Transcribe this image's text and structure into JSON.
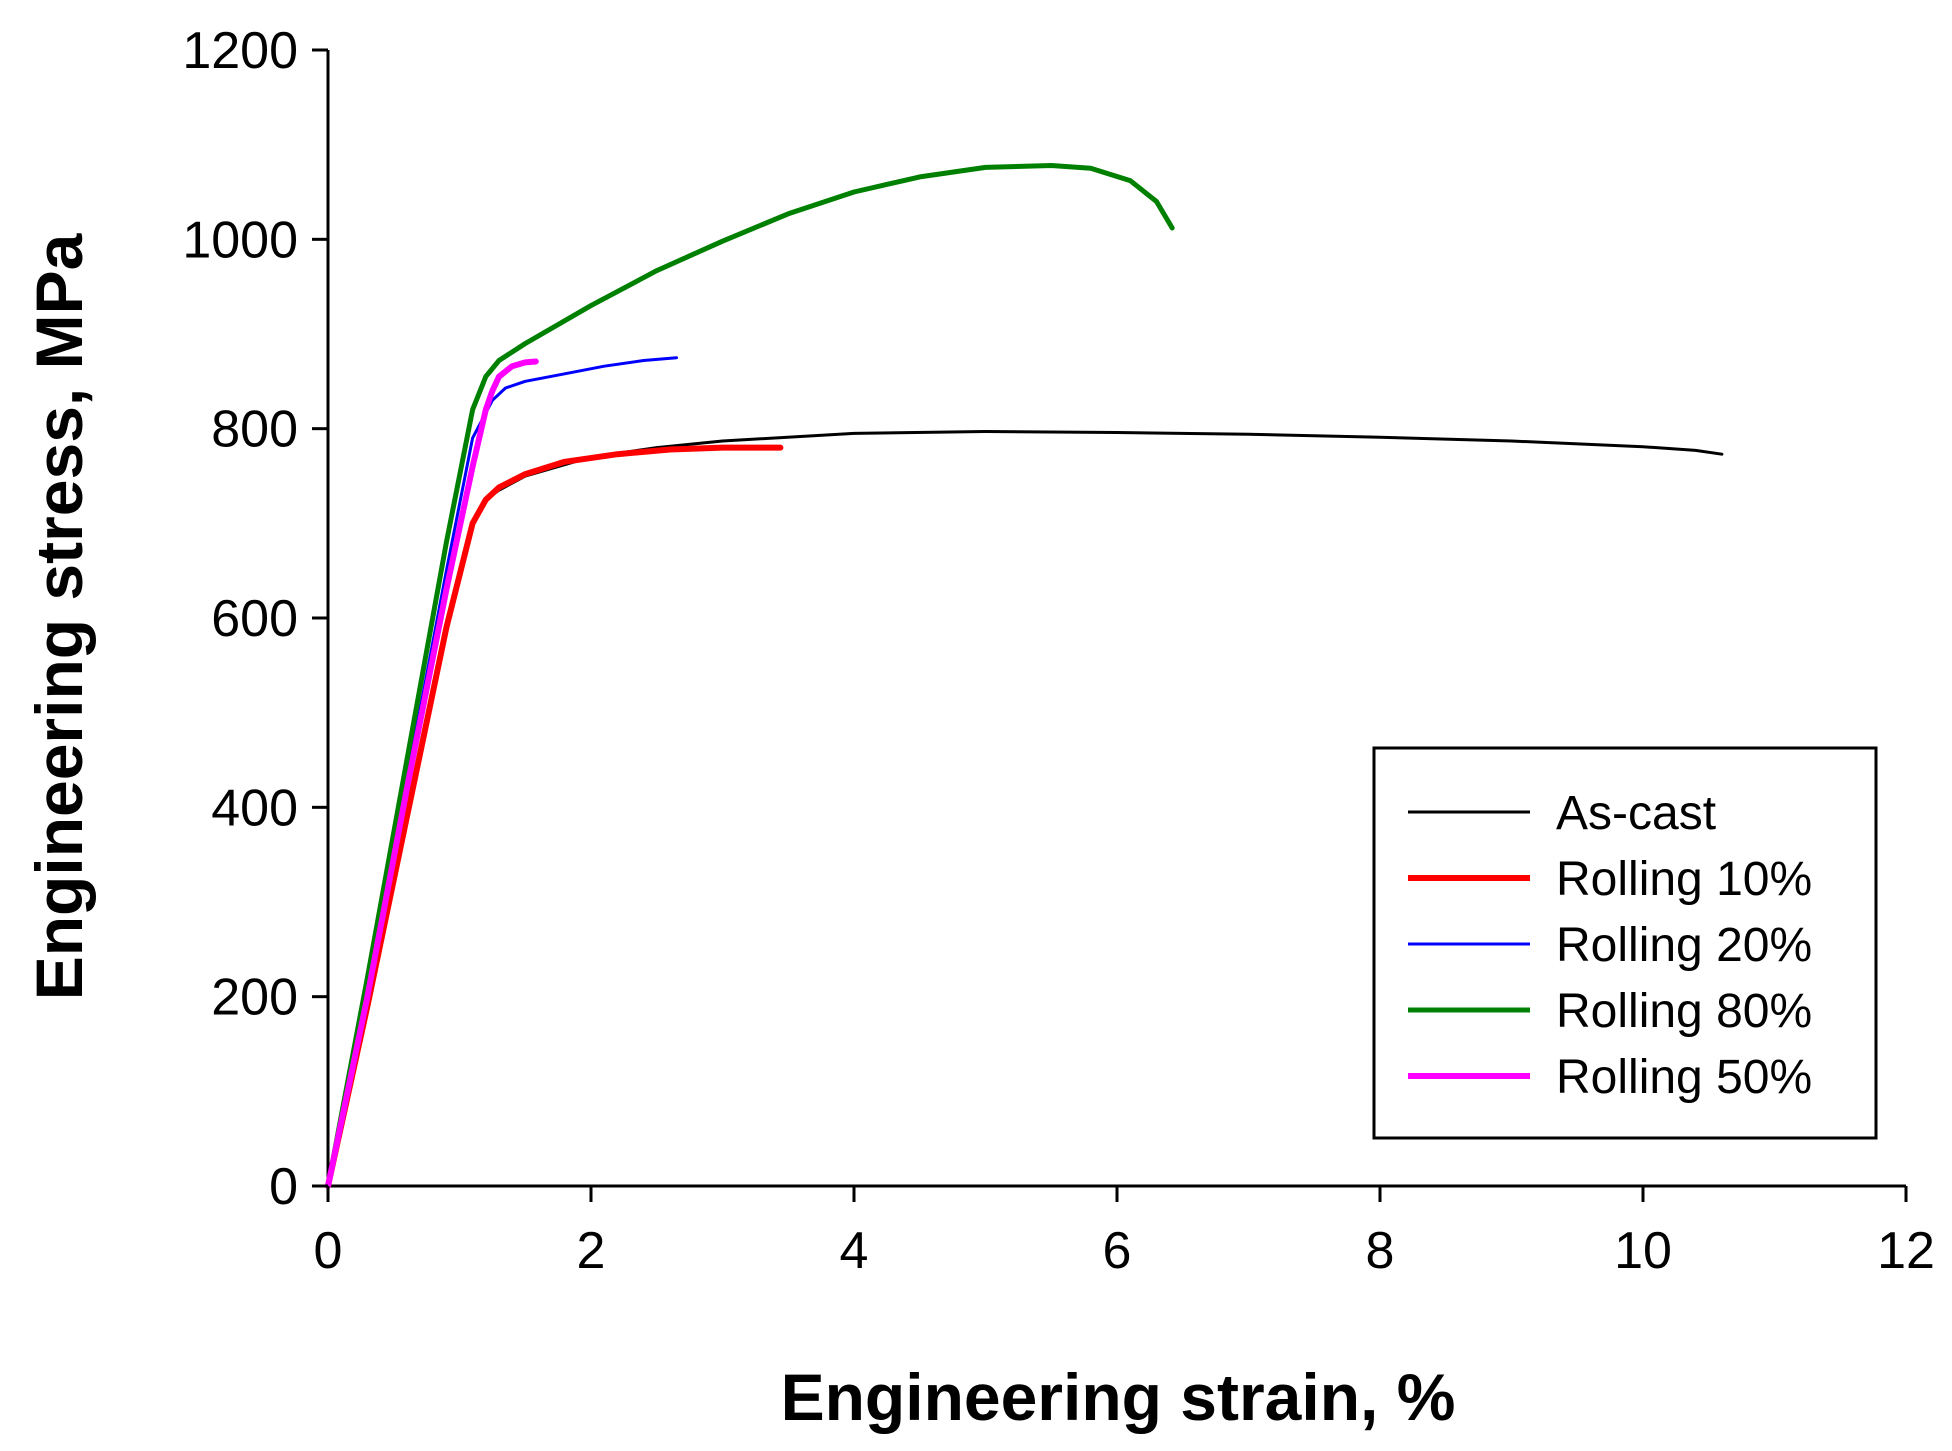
{
  "chart_data": {
    "type": "line",
    "title": "",
    "xlabel": "Engineering strain, %",
    "ylabel": "Engineering stress, MPa",
    "xlim": [
      0,
      12
    ],
    "ylim": [
      0,
      1200
    ],
    "xticks": [
      0,
      2,
      4,
      6,
      8,
      10,
      12
    ],
    "yticks": [
      0,
      200,
      400,
      600,
      800,
      1000,
      1200
    ],
    "xtick_labels": [
      "0",
      "2",
      "4",
      "6",
      "8",
      "10",
      "12"
    ],
    "ytick_labels": [
      "0",
      "200",
      "400",
      "600",
      "800",
      "1000",
      "1200"
    ],
    "grid": false,
    "legend_position": "bottom-right",
    "series": [
      {
        "name": "As-cast",
        "color": "#000000",
        "x": [
          0,
          0.3,
          0.6,
          0.9,
          1.1,
          1.2,
          1.3,
          1.5,
          2,
          2.5,
          3,
          4,
          5,
          6,
          7,
          8,
          9,
          10,
          10.4,
          10.6
        ],
        "y": [
          0,
          190,
          390,
          590,
          700,
          725,
          735,
          750,
          770,
          780,
          787,
          795,
          797,
          796,
          794,
          791,
          787,
          781,
          777,
          773
        ]
      },
      {
        "name": "Rolling 10%",
        "color": "#ff0000",
        "x": [
          0,
          0.3,
          0.6,
          0.9,
          1.1,
          1.2,
          1.3,
          1.5,
          1.8,
          2.2,
          2.6,
          3.0,
          3.44
        ],
        "y": [
          0,
          190,
          390,
          590,
          700,
          725,
          738,
          752,
          765,
          773,
          778,
          780,
          780
        ]
      },
      {
        "name": "Rolling 20%",
        "color": "#0000ff",
        "x": [
          0,
          0.3,
          0.6,
          0.9,
          1.1,
          1.25,
          1.35,
          1.5,
          1.8,
          2.1,
          2.4,
          2.65
        ],
        "y": [
          0,
          210,
          430,
          650,
          790,
          830,
          843,
          850,
          858,
          866,
          872,
          875
        ]
      },
      {
        "name": "Rolling 80%",
        "color": "#008000",
        "x": [
          0,
          0.3,
          0.6,
          0.9,
          1.1,
          1.2,
          1.3,
          1.5,
          2,
          2.5,
          3,
          3.5,
          4,
          4.5,
          5,
          5.5,
          5.8,
          6.1,
          6.3,
          6.42
        ],
        "y": [
          0,
          220,
          450,
          680,
          820,
          855,
          872,
          890,
          930,
          967,
          998,
          1027,
          1050,
          1066,
          1076,
          1078,
          1075,
          1062,
          1040,
          1012
        ]
      },
      {
        "name": "Rolling 50%",
        "color": "#ff00ff",
        "x": [
          0,
          0.3,
          0.6,
          0.9,
          1.1,
          1.2,
          1.25,
          1.3,
          1.4,
          1.5,
          1.58
        ],
        "y": [
          0,
          200,
          420,
          630,
          760,
          820,
          840,
          855,
          866,
          870,
          871
        ]
      }
    ]
  }
}
